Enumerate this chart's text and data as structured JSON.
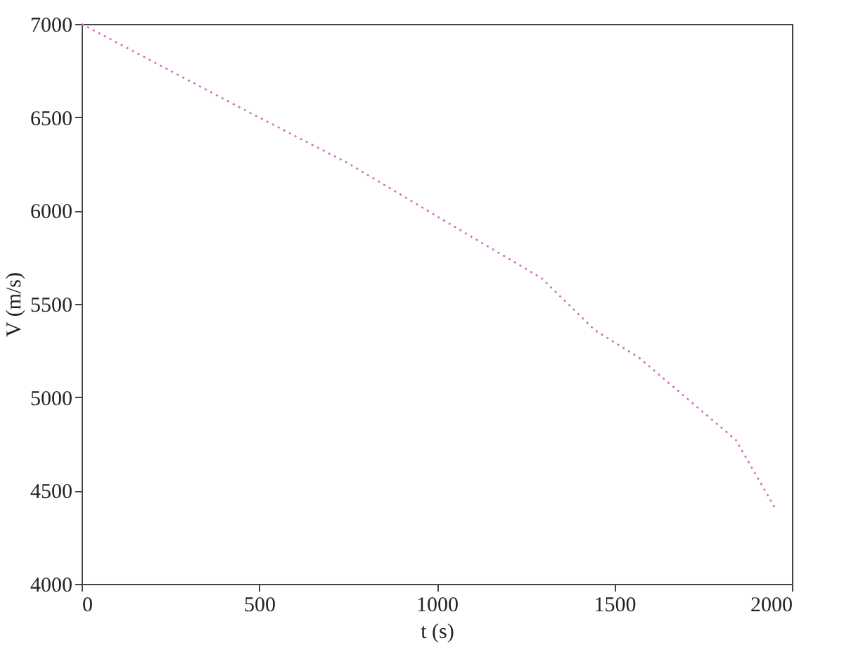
{
  "chart_data": {
    "type": "line",
    "xlabel": "t (s)",
    "ylabel": "V (m/s)",
    "x": [
      0,
      202,
      475,
      749,
      1022,
      1295,
      1445,
      1568,
      1842,
      1951
    ],
    "series": [
      {
        "color": "#d070c0",
        "values": [
          7000,
          6797,
          6523,
          6255,
          5945,
          5638,
          5359,
          5214,
          4771,
          4411
        ]
      }
    ],
    "xlim": [
      0,
      2000
    ],
    "ylim": [
      4000,
      7000
    ],
    "xticks": [
      0,
      500,
      1000,
      1500,
      2000
    ],
    "yticks": [
      4000,
      4500,
      5000,
      5500,
      6000,
      6500,
      7000
    ],
    "grid": false,
    "line_style": "dotted",
    "marker": "none"
  }
}
